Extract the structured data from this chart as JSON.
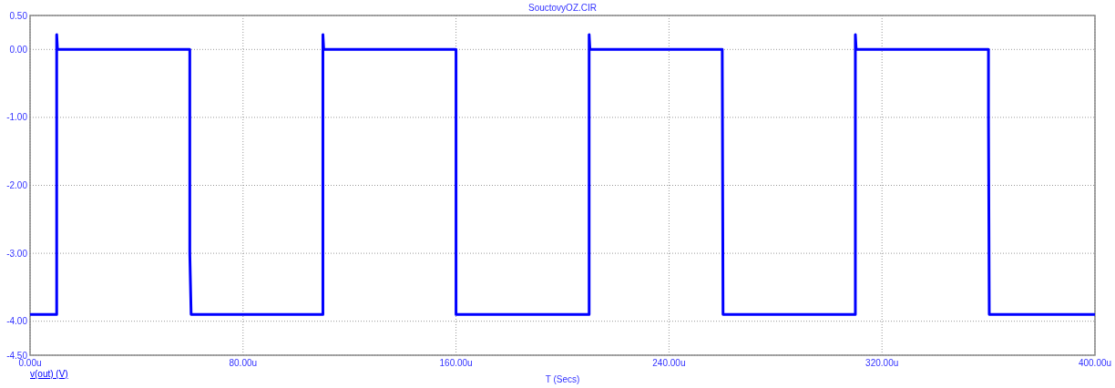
{
  "chart_data": {
    "type": "line",
    "title": "SouctovyOZ.CIR",
    "xlabel": "T (Secs)",
    "xlim": [
      0,
      400
    ],
    "xticks": [
      {
        "value": 0,
        "label": "0.00u"
      },
      {
        "value": 80,
        "label": "80.00u"
      },
      {
        "value": 160,
        "label": "160.00u"
      },
      {
        "value": 240,
        "label": "240.00u"
      },
      {
        "value": 320,
        "label": "320.00u"
      },
      {
        "value": 400,
        "label": "400.00u"
      }
    ],
    "ylim": [
      -4.5,
      0.5
    ],
    "yticks": [
      {
        "value": 0.5,
        "label": "0.50"
      },
      {
        "value": 0,
        "label": "0.00"
      },
      {
        "value": -1,
        "label": "-1.00"
      },
      {
        "value": -2,
        "label": "-2.00"
      },
      {
        "value": -3,
        "label": "-3.00"
      },
      {
        "value": -4,
        "label": "-4.00"
      },
      {
        "value": -4.5,
        "label": "-4.50"
      }
    ],
    "grid": true,
    "legend": "bottom left",
    "line_style": "solid",
    "series": [
      {
        "name": "v(out) (V)",
        "color": "#0000ff",
        "x": [
          0,
          10,
          10,
          10.3,
          60,
          60,
          60.5,
          110,
          110,
          110.3,
          160,
          160,
          210,
          210,
          210.3,
          260,
          260.3,
          310,
          310,
          310.3,
          360,
          360,
          360.3,
          400
        ],
        "values": [
          -3.9,
          -3.9,
          0.22,
          0,
          0,
          -3,
          -3.9,
          -3.9,
          0.22,
          0,
          0,
          -3.9,
          -3.9,
          0.22,
          0,
          0,
          -3.9,
          -3.9,
          0.22,
          0,
          0,
          -1,
          -3.9,
          -3.9
        ]
      }
    ]
  }
}
